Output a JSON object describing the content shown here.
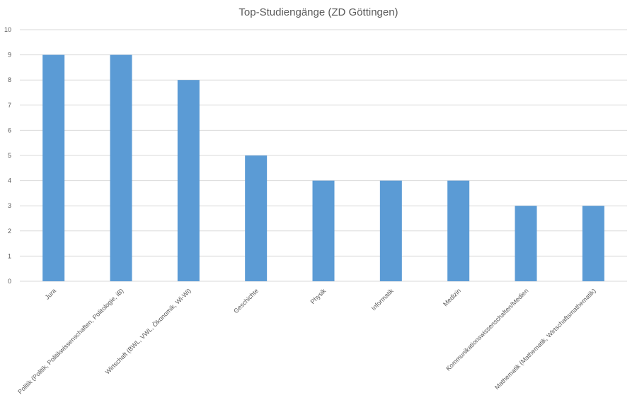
{
  "chart_data": {
    "type": "bar",
    "title": "Top-Studiengänge (ZD Göttingen)",
    "categories": [
      "Jura",
      "Politik (Politik, Politikwissenschaften, Politologie, iB)",
      "Wirtschaft (BWL, VWL, Ökonomik, Wi-Wi)",
      "Geschichte",
      "Physik",
      "Informatik",
      "Medizin",
      "Kommunikationswissenschaften/Medien",
      "Mathematik (Mathematik, Wirtschaftsmathematik)"
    ],
    "values": [
      9,
      9,
      8,
      5,
      4,
      4,
      4,
      3,
      3
    ],
    "ylim": [
      0,
      10
    ],
    "yticks": [
      "0",
      "1",
      "2",
      "3",
      "4",
      "5",
      "6",
      "7",
      "8",
      "9",
      "10"
    ],
    "xlabel": "",
    "ylabel": "",
    "bar_color": "#5b9bd5",
    "grid": true,
    "legend": "none"
  }
}
